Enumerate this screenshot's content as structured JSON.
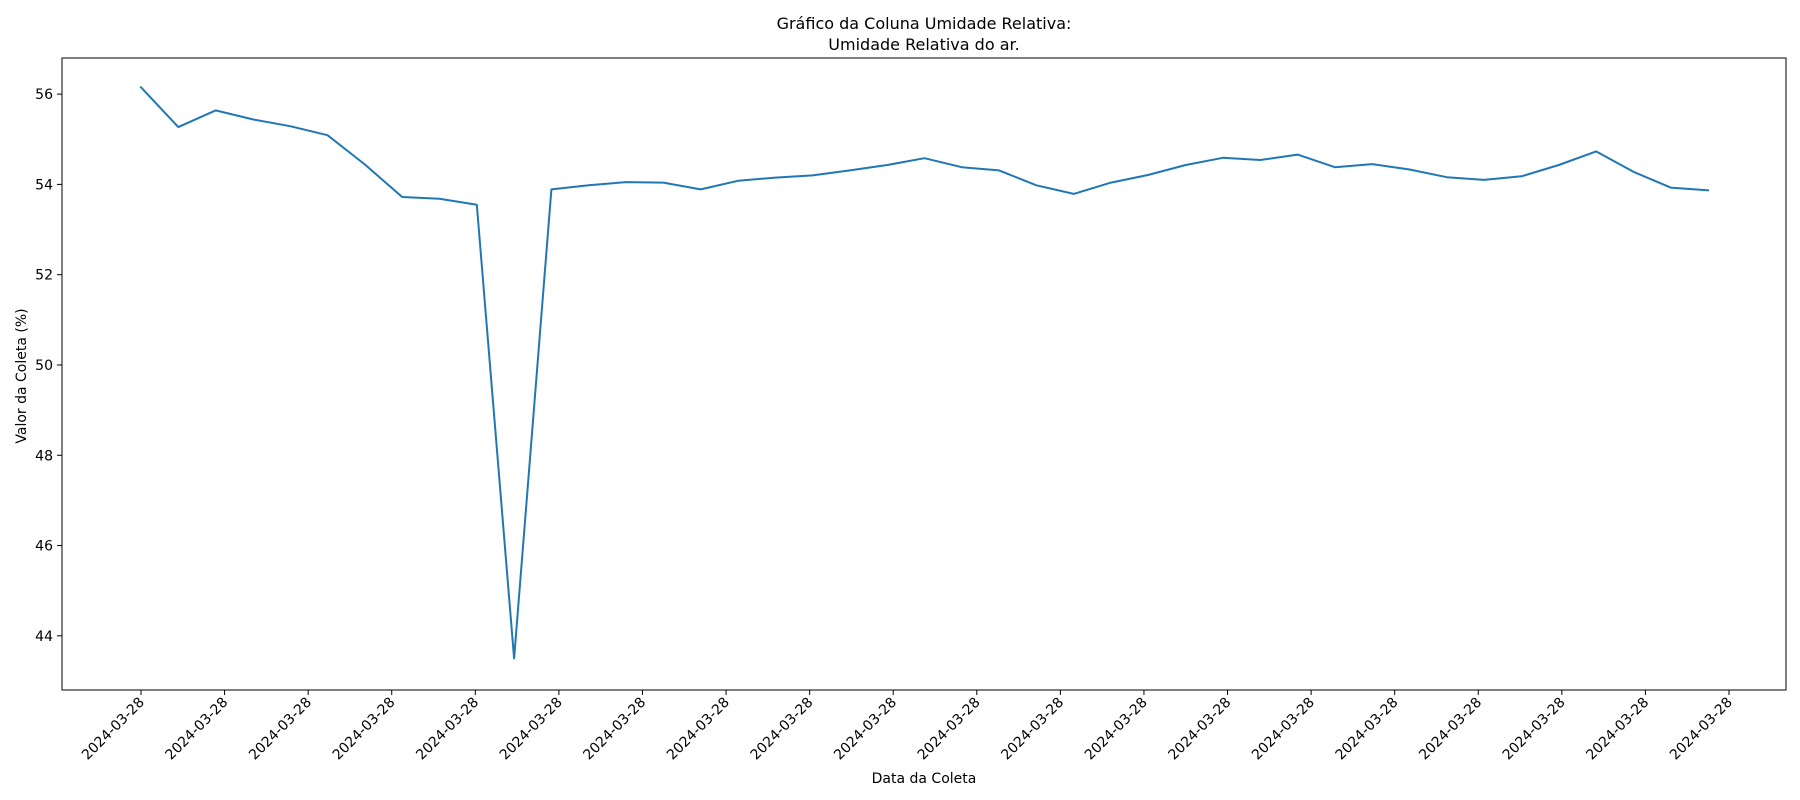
{
  "chart_data": {
    "type": "line",
    "title": "Gráfico da Coluna Umidade Relativa:",
    "subtitle": "Umidade Relativa do ar.",
    "xlabel": "Data da Coleta",
    "ylabel": "Valor da Coleta (%)",
    "x_tick_labels": [
      "2024-03-28",
      "2024-03-28",
      "2024-03-28",
      "2024-03-28",
      "2024-03-28",
      "2024-03-28",
      "2024-03-28",
      "2024-03-28",
      "2024-03-28",
      "2024-03-28",
      "2024-03-28",
      "2024-03-28",
      "2024-03-28",
      "2024-03-28",
      "2024-03-28",
      "2024-03-28",
      "2024-03-28",
      "2024-03-28",
      "2024-03-28",
      "2024-03-28"
    ],
    "y_ticks": [
      44,
      46,
      48,
      50,
      52,
      54,
      56
    ],
    "ylim": [
      42.8,
      56.8
    ],
    "grid": false,
    "color": "#1f77b4",
    "series": [
      {
        "values": [
          56.15,
          55.27,
          55.64,
          55.44,
          55.29,
          55.09,
          54.44,
          53.72,
          53.68,
          53.55,
          43.5,
          53.89,
          53.98,
          54.05,
          54.04,
          53.89,
          54.08,
          54.15,
          54.2,
          54.31,
          54.43,
          54.58,
          54.38,
          54.31,
          53.98,
          53.79,
          54.04,
          54.21,
          54.43,
          54.59,
          54.54,
          54.66,
          54.38,
          54.45,
          54.33,
          54.16,
          54.1,
          54.18,
          54.43,
          54.73,
          54.28,
          53.93,
          53.87
        ]
      }
    ]
  }
}
